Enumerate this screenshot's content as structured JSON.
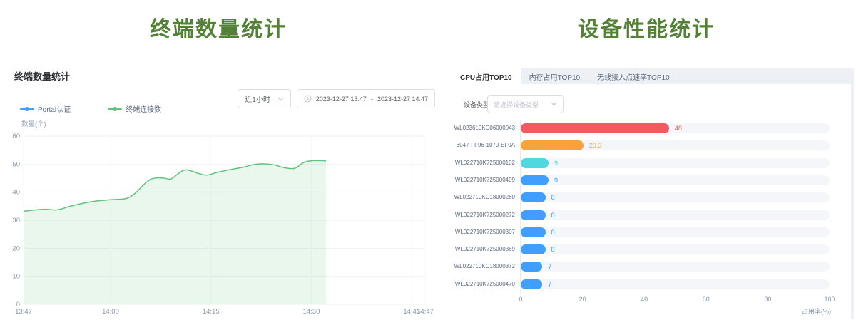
{
  "theme": {
    "section_title_color": "#538135",
    "panel_title_color": "#303133",
    "axis_text_color": "#8a97ab",
    "grid_line_color": "#f0f2f5",
    "border_color": "#dcdfe6",
    "placeholder_color": "#c0c4cc",
    "tabbar_bg": "#edf0f4",
    "bar_track_color": "#f4f6f9",
    "legend_blue": "#409eff",
    "legend_green": "#61c37d"
  },
  "left": {
    "section_title": "终端数量统计",
    "panel_title": "终端数量统计",
    "range_select_value": "近1小时",
    "date_start": "2023-12-27 13:47",
    "date_separator": "-",
    "date_end": "2023-12-27 14:47"
  },
  "right": {
    "section_title": "设备性能统计",
    "tabs": [
      {
        "label": "CPU占用TOP10",
        "active": true
      },
      {
        "label": "内存占用TOP10",
        "active": false
      },
      {
        "label": "无线接入点速率TOP10",
        "active": false
      }
    ],
    "filter_label": "设备类型",
    "filter_placeholder": "请选择设备类型"
  },
  "chart_data": [
    {
      "type": "area",
      "title": "终端数量统计",
      "ylabel": "数量(个)",
      "ylim": [
        0,
        60
      ],
      "yticks": [
        0,
        10,
        20,
        30,
        40,
        50,
        60
      ],
      "xticks": [
        {
          "label": "13:47",
          "minute": 0
        },
        {
          "label": "14:00",
          "minute": 13
        },
        {
          "label": "14:15",
          "minute": 28
        },
        {
          "label": "14:30",
          "minute": 43
        },
        {
          "label": "14:45",
          "minute": 58
        },
        {
          "label": "14:47",
          "minute": 60
        }
      ],
      "x_domain_minutes": [
        0,
        60
      ],
      "grid": true,
      "legend_position": "top-left",
      "series": [
        {
          "name": "Portal认证",
          "color": "#409eff",
          "points": []
        },
        {
          "name": "终端连接数",
          "color": "#61c37d",
          "area_opacity": 0.14,
          "points": [
            [
              0,
              33.2
            ],
            [
              3,
              33.9
            ],
            [
              5,
              33.7
            ],
            [
              7,
              35.0
            ],
            [
              9,
              36.1
            ],
            [
              11,
              36.9
            ],
            [
              13,
              37.3
            ],
            [
              15,
              37.6
            ],
            [
              16,
              38.4
            ],
            [
              17,
              40.3
            ],
            [
              18,
              42.8
            ],
            [
              19,
              44.6
            ],
            [
              20,
              45.1
            ],
            [
              21,
              45.0
            ],
            [
              22,
              44.7
            ],
            [
              23,
              46.4
            ],
            [
              24,
              47.9
            ],
            [
              25,
              47.6
            ],
            [
              26.5,
              46.4
            ],
            [
              27.5,
              46.1
            ],
            [
              29,
              47.1
            ],
            [
              31,
              48.1
            ],
            [
              33,
              49.0
            ],
            [
              34.5,
              49.9
            ],
            [
              36,
              50.1
            ],
            [
              37.5,
              49.7
            ],
            [
              39,
              48.7
            ],
            [
              40.5,
              48.5
            ],
            [
              41.8,
              50.5
            ],
            [
              43,
              51.2
            ],
            [
              45.2,
              51.2
            ]
          ]
        }
      ]
    },
    {
      "type": "bar",
      "orientation": "horizontal",
      "categories": [
        "WL023610KC06000043",
        "6047-FF96-1070-EF0A",
        "WL022710K725000102",
        "WL022710K725000409",
        "WL022710KC18000280",
        "WL022710K725000272",
        "WL022710K725000307",
        "WL022710K725000369",
        "WL022710KC18000372",
        "WL022710K725000470"
      ],
      "values": [
        48,
        20.3,
        9,
        9,
        8,
        8,
        8,
        8,
        7,
        7
      ],
      "colors": [
        "#f25a5f",
        "#f5a43c",
        "#4fd8df",
        "#409eff",
        "#409eff",
        "#409eff",
        "#409eff",
        "#409eff",
        "#409eff",
        "#409eff"
      ],
      "xlabel": "占用率(%)",
      "xlim": [
        0,
        100
      ],
      "xticks": [
        0,
        20,
        40,
        60,
        80,
        100
      ],
      "grid": false,
      "track": true
    }
  ]
}
